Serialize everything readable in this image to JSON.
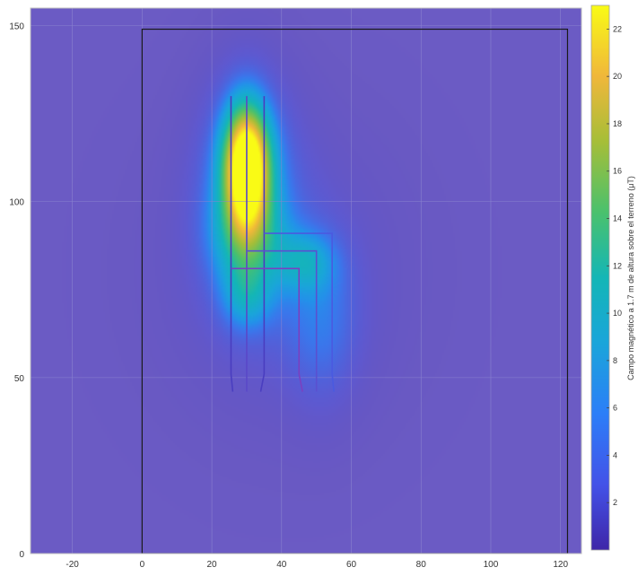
{
  "chart_data": {
    "type": "heatmap",
    "title": "",
    "xlabel": "",
    "ylabel": "",
    "xlim": [
      -32,
      126
    ],
    "ylim": [
      0,
      155
    ],
    "x_ticks": [
      -20,
      0,
      20,
      40,
      60,
      80,
      100,
      120
    ],
    "y_ticks": [
      0,
      50,
      100,
      150
    ],
    "grid": true,
    "background_color": "#6b5bc4",
    "colormap": "parula",
    "colorbar": {
      "label": "Campo magnético a 1.7 m de altura sobre el terreno (μT)",
      "range": [
        0,
        23
      ],
      "ticks": [
        2,
        4,
        6,
        8,
        10,
        12,
        14,
        16,
        18,
        20,
        22
      ]
    },
    "field_sources": [
      {
        "name": "high-field-core",
        "x": 30,
        "y": 110,
        "sx": 4.5,
        "sy": 12,
        "amplitude": 22
      },
      {
        "name": "high-field-halo",
        "x": 30,
        "y": 104,
        "sx": 10,
        "sy": 24,
        "amplitude": 7
      },
      {
        "name": "upper-lobe",
        "x": 30,
        "y": 90,
        "sx": 7,
        "sy": 9,
        "amplitude": 5
      },
      {
        "name": "lower-lobe",
        "x": 30,
        "y": 73,
        "sx": 5,
        "sy": 7,
        "amplitude": 5
      },
      {
        "name": "corner-lobe",
        "x": 47,
        "y": 83,
        "sx": 6,
        "sy": 6,
        "amplitude": 5
      },
      {
        "name": "right-column-lobe",
        "x": 52,
        "y": 66,
        "sx": 8,
        "sy": 18,
        "amplitude": 4
      },
      {
        "name": "broad-halo",
        "x": 40,
        "y": 80,
        "sx": 28,
        "sy": 34,
        "amplitude": 2.6
      }
    ],
    "boundary_rectangle": {
      "x": [
        0,
        122
      ],
      "y": [
        0,
        149
      ],
      "color": "#1a1a1a"
    },
    "conductor_lines": [
      {
        "name": "outer-left-leg",
        "color": "#4a3ec0",
        "points": [
          [
            26,
            46
          ],
          [
            25.5,
            51
          ],
          [
            25.5,
            130
          ]
        ]
      },
      {
        "name": "left-leg-2",
        "color": "#5a48c8",
        "points": [
          [
            30,
            46
          ],
          [
            30,
            130
          ]
        ]
      },
      {
        "name": "left-leg-3",
        "color": "#4a3ec0",
        "points": [
          [
            34,
            46
          ],
          [
            35,
            51
          ],
          [
            35,
            130
          ]
        ]
      },
      {
        "name": "inner-bracket",
        "color": "#7a40c0",
        "points": [
          [
            46,
            46
          ],
          [
            45,
            51
          ],
          [
            45,
            81
          ],
          [
            25.5,
            81
          ]
        ]
      },
      {
        "name": "middle-bracket",
        "color": "#5a50d0",
        "points": [
          [
            50,
            46
          ],
          [
            50,
            86
          ],
          [
            30,
            86
          ]
        ]
      },
      {
        "name": "outer-bracket",
        "color": "#4a5ae0",
        "points": [
          [
            55,
            46
          ],
          [
            54.5,
            51
          ],
          [
            54.5,
            91
          ],
          [
            35,
            91
          ]
        ]
      }
    ]
  }
}
